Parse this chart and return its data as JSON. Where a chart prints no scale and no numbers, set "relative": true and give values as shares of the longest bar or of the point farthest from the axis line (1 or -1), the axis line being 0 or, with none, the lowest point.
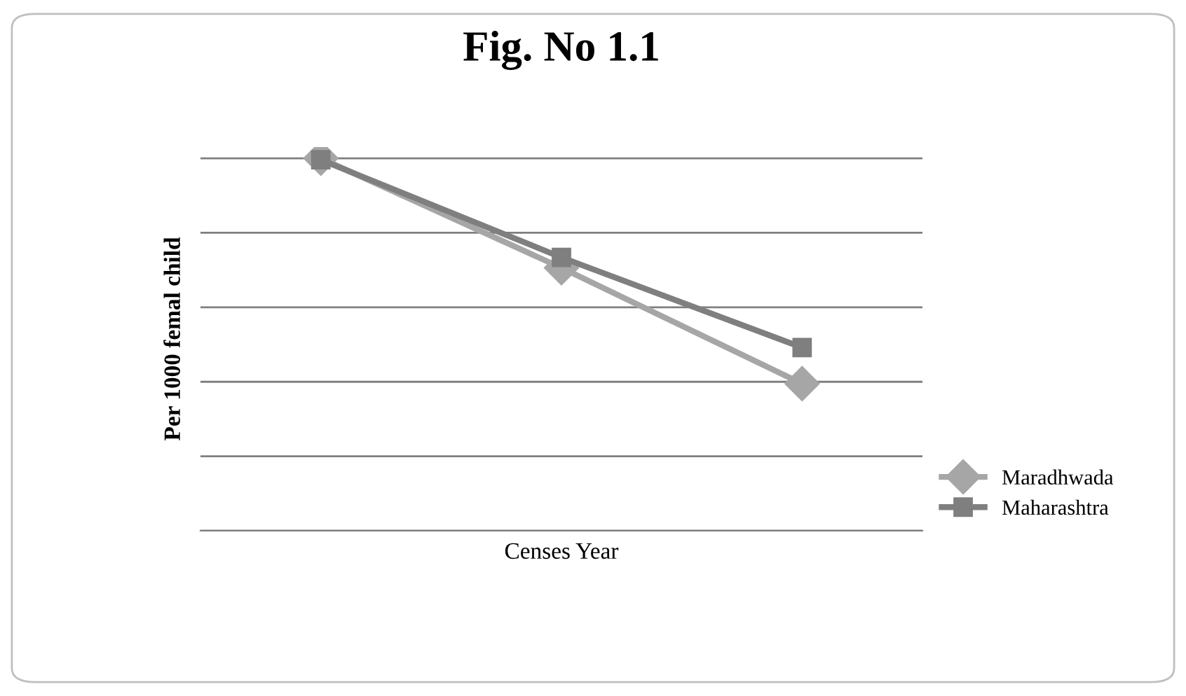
{
  "chart_data": {
    "type": "line",
    "title": "Fig. No 1.1",
    "xlabel": "Censes Year",
    "ylabel": "Per 1000 femal child",
    "categories": [
      null,
      null,
      null
    ],
    "relative": true,
    "grid": "y",
    "legend": "bottom right",
    "tick_labels": false,
    "series": [
      {
        "name": "Maradhwada",
        "color": "#a6a6a6",
        "marker": "diamond",
        "values": [
          1,
          0.706,
          0.395
        ]
      },
      {
        "name": "Maharashtra",
        "color": "#7f7f7f",
        "marker": "square",
        "values": [
          0.996,
          0.734,
          0.492
        ]
      }
    ]
  }
}
